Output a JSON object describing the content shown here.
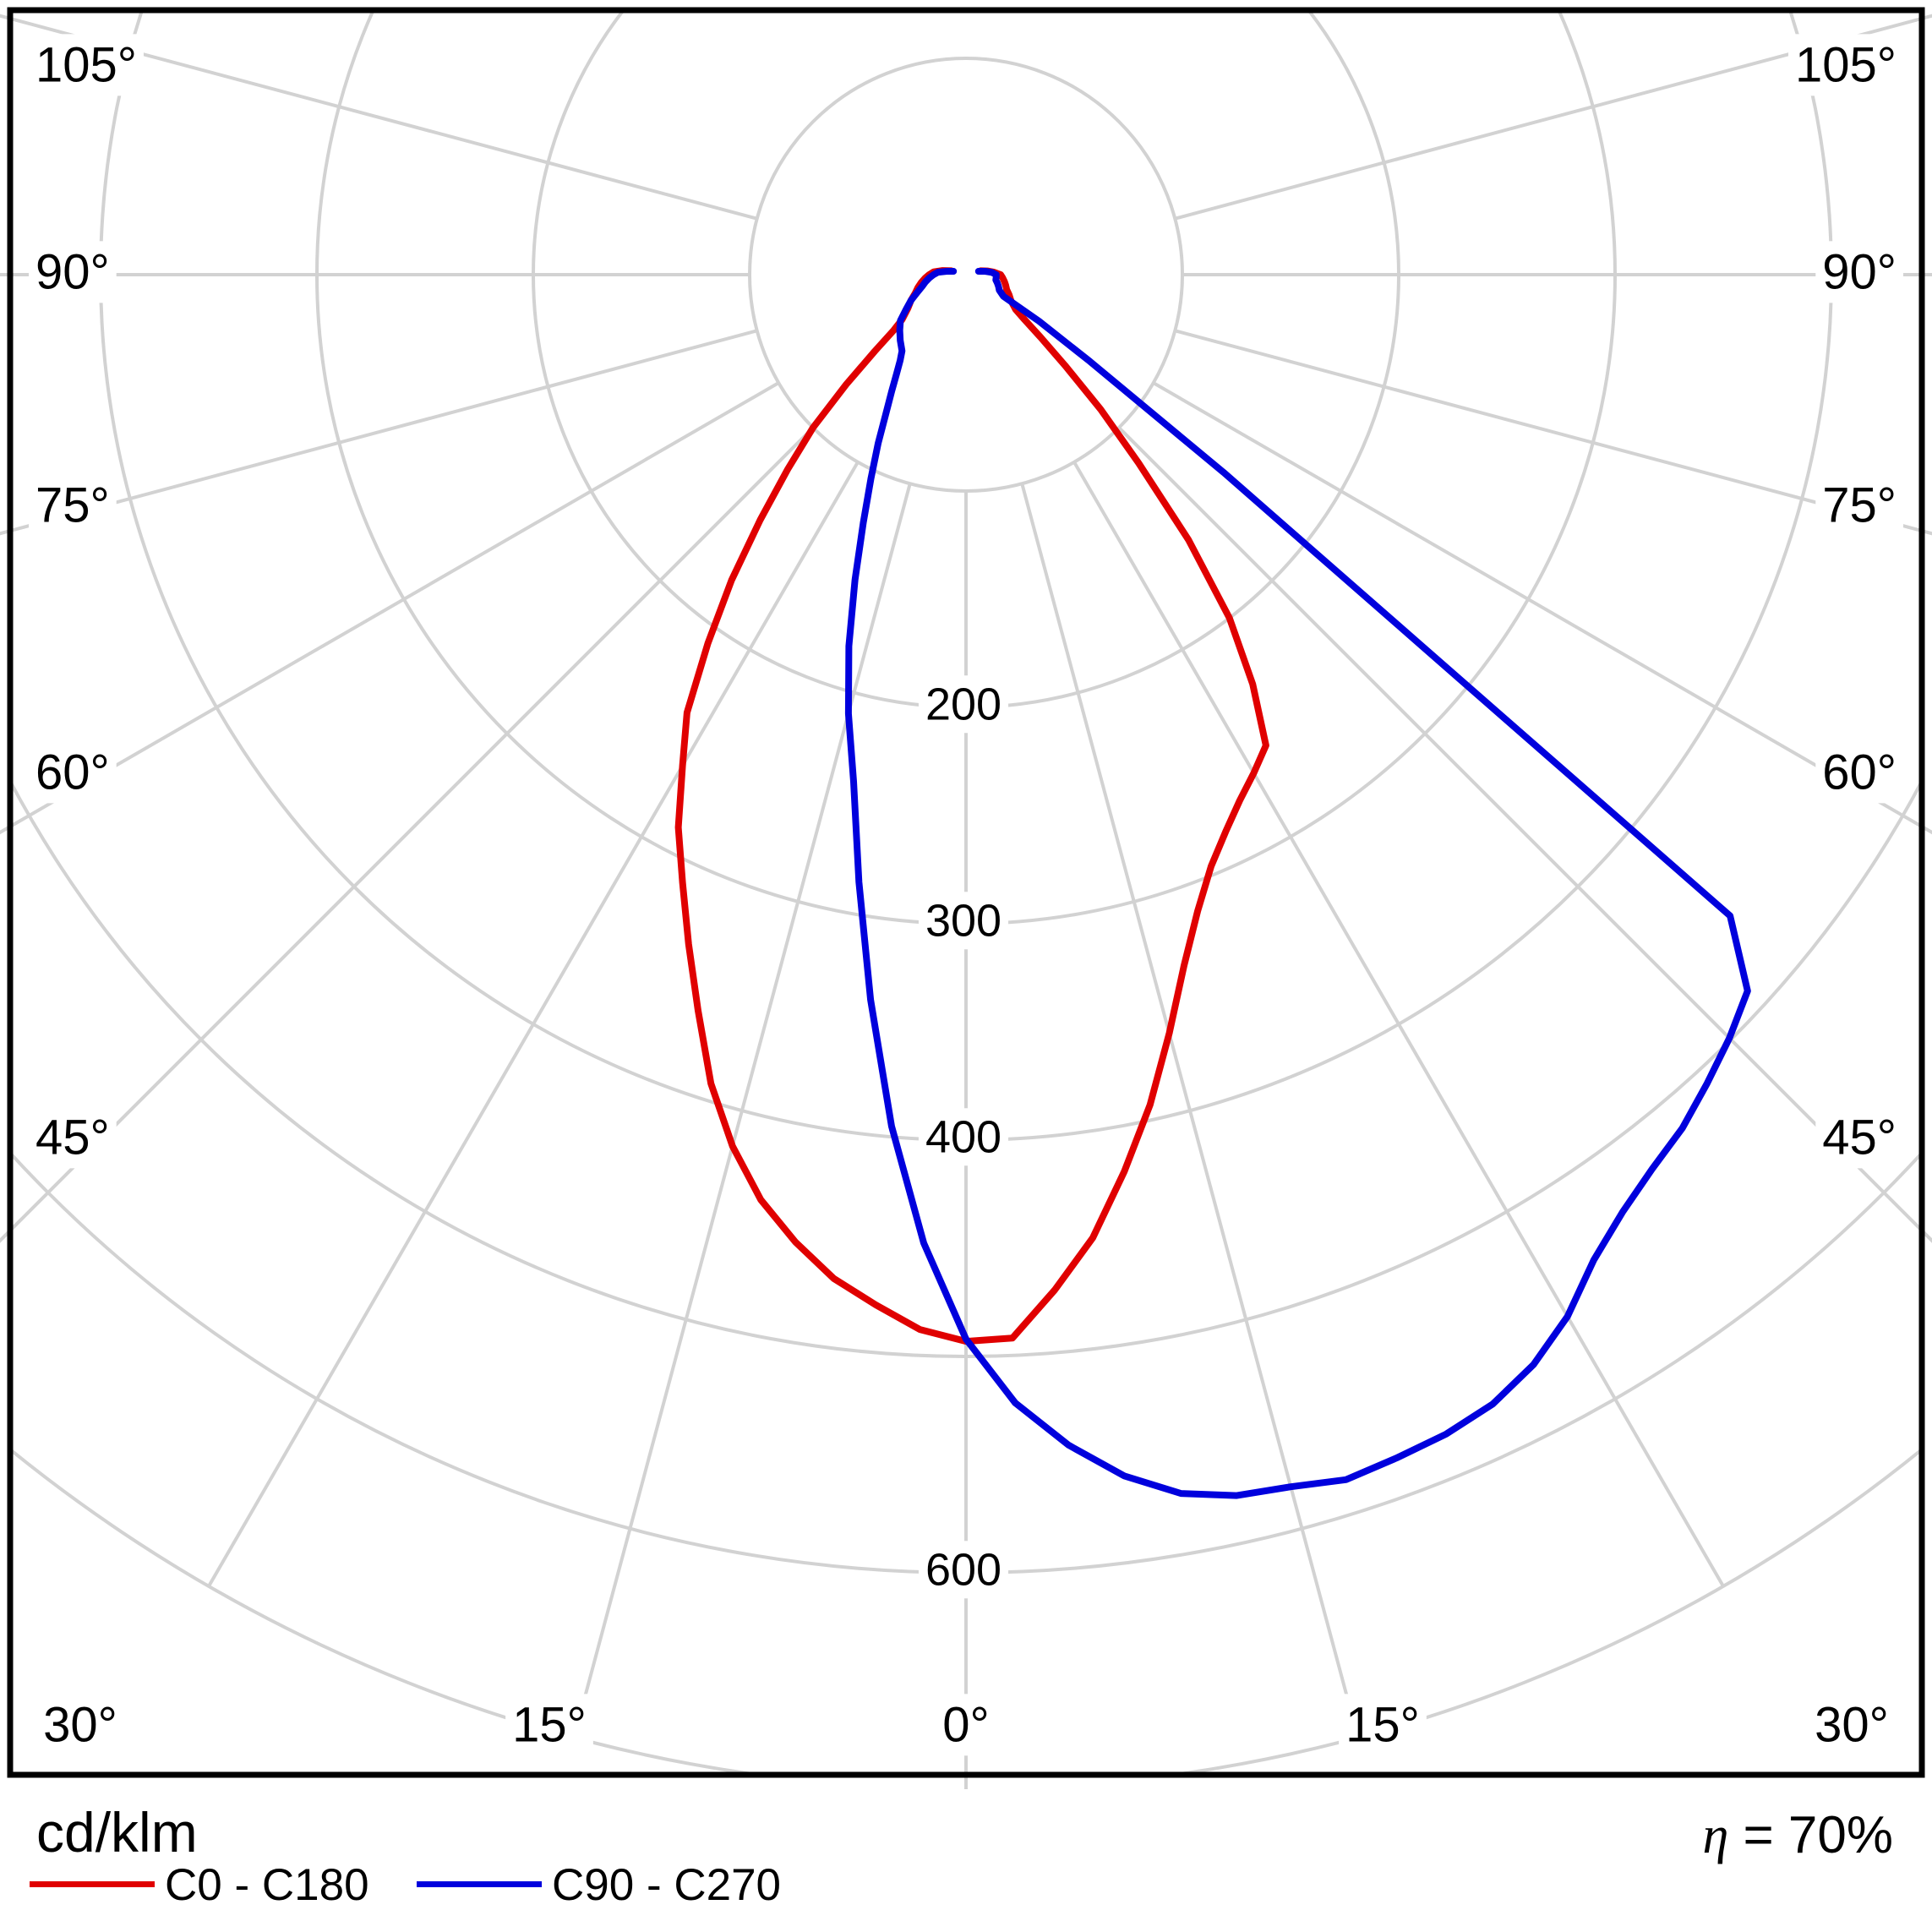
{
  "title_unit": "cd/klm",
  "efficiency_value": "= 70%",
  "efficiency_symbol": "η",
  "legend": [
    {
      "label": "C0 - C180",
      "color": "#e00000"
    },
    {
      "label": "C90 - C270",
      "color": "#0000dd"
    }
  ],
  "colors": {
    "background": "#ffffff",
    "grid": "#d2d2d2",
    "border": "#000000",
    "text": "#000000",
    "series_c0": "#e00000",
    "series_c90": "#0000dd"
  },
  "chart_data": {
    "type": "line",
    "subtype": "polar-luminous-intensity",
    "title": "Luminaire polar intensity diagram",
    "unit": "cd/klm",
    "efficiency_percent": 70,
    "angle_zero_direction": "down",
    "angle_range_deg": [
      -105,
      105
    ],
    "grid_angle_step_deg": 15,
    "radial_gridlines": [
      100,
      200,
      300,
      400,
      500,
      600,
      700
    ],
    "radial_axis_labels": [
      "200",
      "300",
      "400",
      "600"
    ],
    "radial_axis_label_values": [
      200,
      300,
      400,
      600
    ],
    "angle_labels_left": [
      "105°",
      "90°",
      "75°",
      "60°",
      "45°"
    ],
    "angle_labels_left_deg": [
      105,
      90,
      75,
      60,
      45
    ],
    "angle_labels_bottom": [
      "30°",
      "15°",
      "0°",
      "15°",
      "30°"
    ],
    "angle_labels_bottom_deg": [
      -30,
      -15,
      0,
      15,
      30
    ],
    "angle_labels_right": [
      "105°",
      "90°",
      "75°",
      "60°",
      "45°"
    ],
    "angle_labels_right_deg": [
      105,
      90,
      75,
      60,
      45
    ],
    "series": [
      {
        "name": "C0 - C180",
        "color": "#e00000",
        "points": [
          [
            -105,
            7
          ],
          [
            -100,
            11
          ],
          [
            -95,
            15
          ],
          [
            -90,
            17
          ],
          [
            -85,
            19
          ],
          [
            -80,
            21
          ],
          [
            -75,
            23
          ],
          [
            -70,
            25
          ],
          [
            -65,
            28
          ],
          [
            -60,
            31
          ],
          [
            -55,
            36
          ],
          [
            -52.5,
            42
          ],
          [
            -50,
            55
          ],
          [
            -47.5,
            75
          ],
          [
            -45,
            100
          ],
          [
            -42.5,
            122
          ],
          [
            -40,
            148
          ],
          [
            -37.5,
            178
          ],
          [
            -35,
            208
          ],
          [
            -32.5,
            240
          ],
          [
            -30,
            262
          ],
          [
            -27.5,
            288
          ],
          [
            -25,
            310
          ],
          [
            -22.5,
            335
          ],
          [
            -20,
            362
          ],
          [
            -17.5,
            392
          ],
          [
            -15,
            417
          ],
          [
            -12.5,
            438
          ],
          [
            -10,
            454
          ],
          [
            -7.5,
            468
          ],
          [
            -5,
            478
          ],
          [
            -2.5,
            488
          ],
          [
            0,
            493
          ],
          [
            2.5,
            492
          ],
          [
            5,
            471
          ],
          [
            7.5,
            449
          ],
          [
            10,
            421
          ],
          [
            12.5,
            393
          ],
          [
            15,
            363
          ],
          [
            17.5,
            335
          ],
          [
            20,
            313
          ],
          [
            22.5,
            296
          ],
          [
            25,
            284
          ],
          [
            27.5,
            274
          ],
          [
            30,
            266
          ],
          [
            32.5,
            258
          ],
          [
            35,
            231
          ],
          [
            37.5,
            200
          ],
          [
            40,
            160
          ],
          [
            42.5,
            118
          ],
          [
            45,
            88
          ],
          [
            47.5,
            62
          ],
          [
            50,
            45
          ],
          [
            52.5,
            34
          ],
          [
            55,
            28
          ],
          [
            60,
            24
          ],
          [
            65,
            22
          ],
          [
            70,
            20
          ],
          [
            75,
            19
          ],
          [
            80,
            18
          ],
          [
            85,
            17
          ],
          [
            90,
            16
          ],
          [
            95,
            13
          ],
          [
            100,
            10
          ],
          [
            105,
            7
          ]
        ]
      },
      {
        "name": "C90 - C270",
        "color": "#0000dd",
        "points": [
          [
            -105,
            6
          ],
          [
            -100,
            9
          ],
          [
            -95,
            13
          ],
          [
            -90,
            15
          ],
          [
            -85,
            17
          ],
          [
            -80,
            19
          ],
          [
            -75,
            21
          ],
          [
            -70,
            24
          ],
          [
            -65,
            28
          ],
          [
            -60,
            32
          ],
          [
            -55,
            37
          ],
          [
            -50,
            40
          ],
          [
            -45,
            43
          ],
          [
            -40,
            46
          ],
          [
            -37.5,
            50
          ],
          [
            -35,
            56
          ],
          [
            -32.5,
            64
          ],
          [
            -30,
            74
          ],
          [
            -27.5,
            88
          ],
          [
            -25,
            104
          ],
          [
            -22.5,
            124
          ],
          [
            -20,
            150
          ],
          [
            -17.5,
            180
          ],
          [
            -15,
            210
          ],
          [
            -12.5,
            240
          ],
          [
            -10,
            285
          ],
          [
            -7.5,
            338
          ],
          [
            -5,
            395
          ],
          [
            -2.5,
            448
          ],
          [
            0,
            492
          ],
          [
            2.5,
            522
          ],
          [
            5,
            543
          ],
          [
            7.5,
            560
          ],
          [
            10,
            572
          ],
          [
            12.5,
            578
          ],
          [
            15,
            580
          ],
          [
            17.5,
            584
          ],
          [
            20,
            582
          ],
          [
            22.5,
            580
          ],
          [
            25,
            576
          ],
          [
            27.5,
            568
          ],
          [
            30,
            556
          ],
          [
            32.5,
            540
          ],
          [
            35,
            529
          ],
          [
            37.5,
            521
          ],
          [
            40,
            515
          ],
          [
            42.5,
            507
          ],
          [
            45,
            499
          ],
          [
            47.5,
            490
          ],
          [
            50,
            461
          ],
          [
            52.5,
            150
          ],
          [
            55,
            70
          ],
          [
            57.5,
            40
          ],
          [
            60,
            20
          ],
          [
            65,
            17
          ],
          [
            70,
            16
          ],
          [
            75,
            15
          ],
          [
            80,
            14
          ],
          [
            85,
            14
          ],
          [
            90,
            14
          ],
          [
            95,
            12
          ],
          [
            100,
            9
          ],
          [
            105,
            6
          ]
        ]
      }
    ],
    "legend_position": "bottom-left",
    "grid_on": true
  }
}
